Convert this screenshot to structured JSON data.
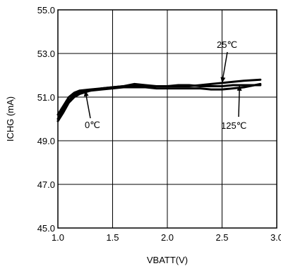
{
  "chart_data": {
    "type": "line",
    "title": "",
    "xlabel": "VBATT(V)",
    "ylabel": "ICHG (mA)",
    "xlim": [
      1.0,
      3.0
    ],
    "ylim": [
      45.0,
      55.0
    ],
    "x_ticks": [
      1.0,
      1.5,
      2.0,
      2.5,
      3.0
    ],
    "x_tick_labels": [
      "1.0",
      "1.5",
      "2.0",
      "2.5",
      "3.0"
    ],
    "y_ticks": [
      45.0,
      47.0,
      49.0,
      51.0,
      53.0,
      55.0
    ],
    "y_tick_labels": [
      "45.0",
      "47.0",
      "49.0",
      "51.0",
      "53.0",
      "55.0"
    ],
    "grid": true,
    "series": [
      {
        "name": "25℃",
        "x": [
          1.0,
          1.05,
          1.1,
          1.15,
          1.2,
          1.3,
          1.4,
          1.5,
          1.6,
          1.7,
          1.8,
          1.9,
          2.0,
          2.1,
          2.2,
          2.3,
          2.4,
          2.5,
          2.6,
          2.7,
          2.85
        ],
        "y": [
          50.2,
          50.6,
          51.0,
          51.2,
          51.3,
          51.35,
          51.4,
          51.45,
          51.5,
          51.5,
          51.5,
          51.5,
          51.5,
          51.5,
          51.5,
          51.55,
          51.6,
          51.65,
          51.7,
          51.75,
          51.8
        ]
      },
      {
        "name": "0℃",
        "x": [
          1.0,
          1.05,
          1.1,
          1.15,
          1.2,
          1.3,
          1.4,
          1.5,
          1.6,
          1.7,
          1.8,
          1.9,
          2.0,
          2.1,
          2.2,
          2.3,
          2.4,
          2.5,
          2.6,
          2.7,
          2.85
        ],
        "y": [
          50.0,
          50.45,
          50.85,
          51.1,
          51.25,
          51.3,
          51.35,
          51.4,
          51.45,
          51.45,
          51.45,
          51.4,
          51.4,
          51.4,
          51.4,
          51.4,
          51.35,
          51.35,
          51.4,
          51.45,
          51.6
        ]
      },
      {
        "name": "125℃",
        "x": [
          1.0,
          1.05,
          1.1,
          1.15,
          1.2,
          1.3,
          1.4,
          1.5,
          1.6,
          1.7,
          1.8,
          1.9,
          2.0,
          2.1,
          2.2,
          2.3,
          2.4,
          2.5,
          2.6,
          2.7,
          2.85
        ],
        "y": [
          49.9,
          50.3,
          50.75,
          51.0,
          51.15,
          51.3,
          51.4,
          51.45,
          51.5,
          51.6,
          51.55,
          51.5,
          51.5,
          51.55,
          51.55,
          51.5,
          51.5,
          51.5,
          51.55,
          51.55,
          51.55
        ]
      }
    ],
    "annotations": [
      {
        "text": "25℃",
        "point_x": 2.5,
        "point_y": 51.65
      },
      {
        "text": "0℃",
        "point_x": 1.25,
        "point_y": 51.3
      },
      {
        "text": "125℃",
        "point_x": 2.66,
        "point_y": 51.55
      }
    ]
  }
}
